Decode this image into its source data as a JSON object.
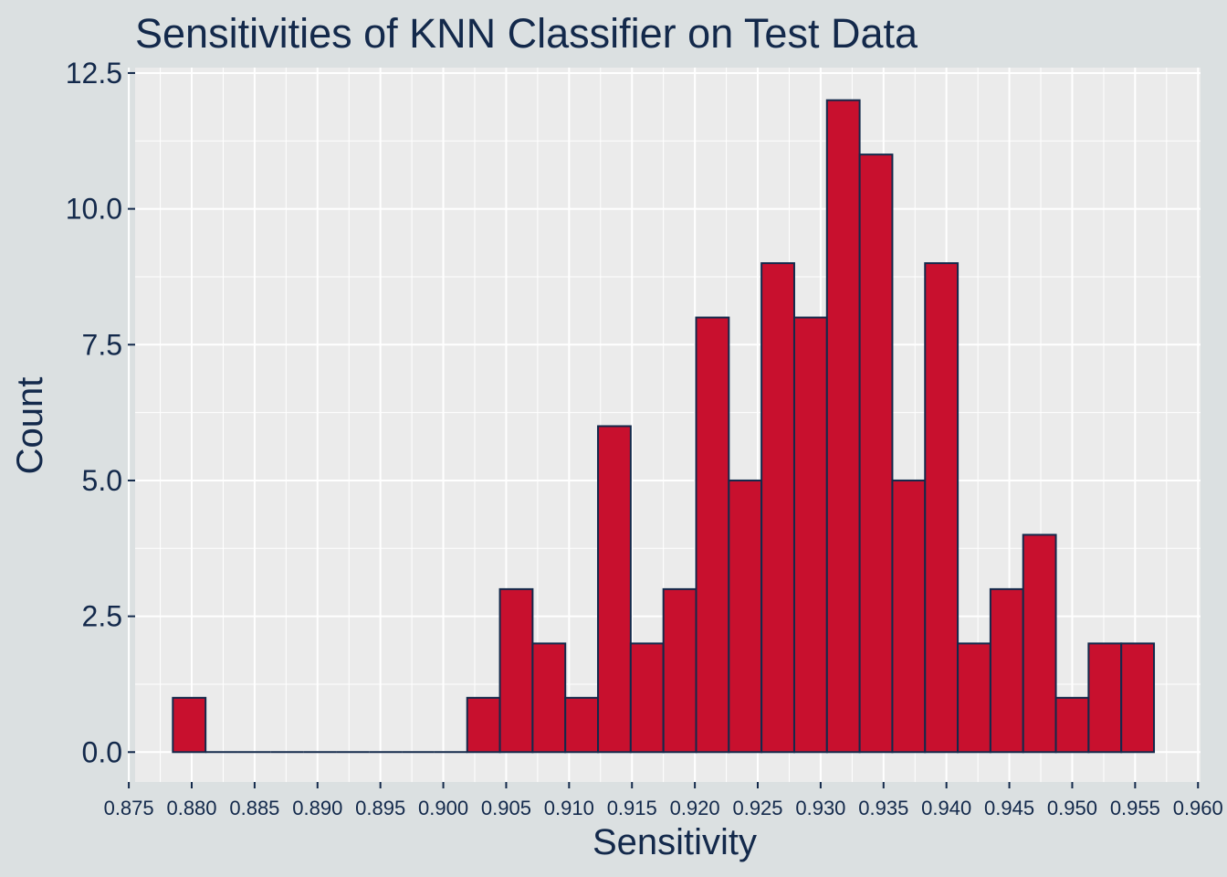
{
  "chart_data": {
    "type": "bar",
    "title": "Sensitivities of KNN Classifier on Test Data",
    "xlabel": "Sensitivity",
    "ylabel": "Count",
    "xlim": [
      0.8755,
      0.9602
    ],
    "ylim": [
      -0.55,
      12.6
    ],
    "x_ticks": [
      0.875,
      0.88,
      0.885,
      0.89,
      0.895,
      0.9,
      0.905,
      0.91,
      0.915,
      0.92,
      0.925,
      0.93,
      0.935,
      0.94,
      0.945,
      0.95,
      0.955,
      0.96
    ],
    "x_tick_labels": [
      "0.875",
      "0.880",
      "0.885",
      "0.890",
      "0.895",
      "0.900",
      "0.905",
      "0.910",
      "0.915",
      "0.920",
      "0.925",
      "0.930",
      "0.935",
      "0.940",
      "0.945",
      "0.950",
      "0.955",
      "0.960"
    ],
    "y_ticks": [
      0,
      2.5,
      5,
      7.5,
      10,
      12.5
    ],
    "y_tick_labels": [
      "0.0",
      "2.5",
      "5.0",
      "7.5",
      "10.0",
      "12.5"
    ],
    "grid": true,
    "bin_start": 0.8785,
    "bin_width": 0.0026,
    "counts": [
      1,
      0,
      0,
      0,
      0,
      0,
      0,
      0,
      0,
      1,
      3,
      2,
      1,
      6,
      2,
      3,
      8,
      5,
      9,
      8,
      12,
      11,
      5,
      9,
      2,
      3,
      4,
      1,
      2,
      2
    ],
    "colors": {
      "bar_fill": "#c8102e",
      "bar_stroke": "#13294b",
      "panel": "#ebebeb",
      "plot_background": "#dbe0e1",
      "text": "#13294b",
      "grid": "#ffffff"
    }
  }
}
